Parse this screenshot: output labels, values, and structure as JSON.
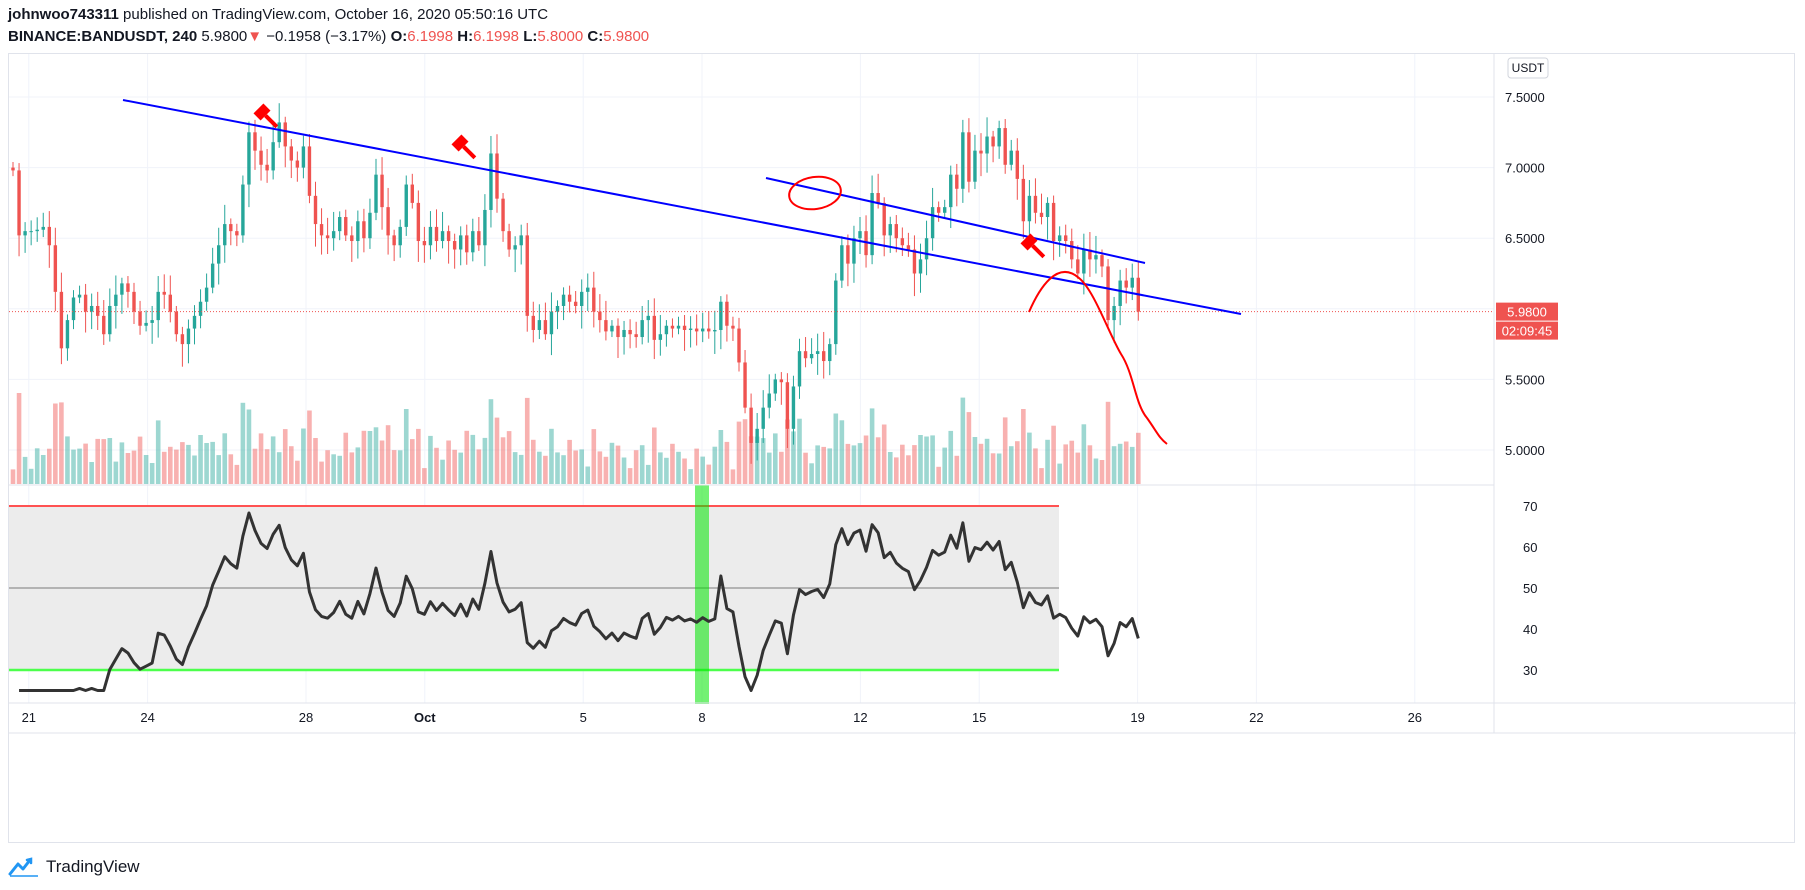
{
  "header": {
    "user": "johnwoo743311",
    "published": "published on TradingView.com, October 16, 2020 05:50:16 UTC",
    "symbol": "BINANCE:BANDUSDT, 240",
    "last": "5.9800",
    "arrow": "▼",
    "change": "−0.1958 (−3.17%)",
    "o_label": "O:",
    "o": "6.1998",
    "h_label": "H:",
    "h": "6.1998",
    "l_label": "L:",
    "l": "5.8000",
    "c_label": "C:",
    "c": "5.9800"
  },
  "footer": {
    "brand": "TradingView",
    "logo_icon": "tradingview-logo-icon"
  },
  "colors": {
    "up": "#26a69a",
    "down": "#ef5350",
    "trendline": "#0000ff",
    "annotation": "#ff0000",
    "rsi_line": "#333333",
    "rsi_upper": "#ff5252",
    "rsi_lower": "#4cff4c",
    "rsi_mid": "#a0a0a0",
    "rsi_band": "#ececec",
    "rsi_highlight": "#00e600"
  },
  "chart_data": {
    "type": "candlestick",
    "price_axis": {
      "currency": "USDT",
      "ticks": [
        "7.5000",
        "7.0000",
        "6.5000",
        "6.0000",
        "5.5000",
        "5.0000"
      ],
      "range": [
        4.75,
        7.8
      ],
      "last_price_label": "5.9800",
      "countdown_label": "02:09:45"
    },
    "rsi_axis": {
      "ticks": [
        "70",
        "60",
        "50",
        "40",
        "30"
      ],
      "range": [
        23,
        76
      ],
      "upper": 70,
      "middle": 50,
      "lower": 30
    },
    "x_axis": {
      "labels": [
        "21",
        "24",
        "28",
        "Oct",
        "5",
        "8",
        "12",
        "15",
        "19",
        "22",
        "26"
      ],
      "label_dates": [
        "2020-09-21",
        "2020-09-24",
        "2020-09-28",
        "2020-10-01",
        "2020-10-05",
        "2020-10-08",
        "2020-10-12",
        "2020-10-15",
        "2020-10-19",
        "2020-10-22",
        "2020-10-26"
      ],
      "start": "2020-09-20T12:00Z",
      "end": "2020-10-28T00:00Z"
    },
    "close": [
      6.98,
      6.52,
      6.55,
      6.55,
      6.56,
      6.58,
      6.45,
      6.12,
      5.72,
      5.92,
      6.08,
      6.1,
      5.98,
      6.02,
      5.95,
      5.82,
      6.02,
      6.1,
      6.18,
      6.12,
      5.98,
      5.88,
      5.9,
      5.92,
      6.12,
      6.1,
      5.98,
      5.82,
      5.75,
      5.86,
      5.95,
      6.05,
      6.15,
      6.32,
      6.45,
      6.6,
      6.55,
      6.52,
      6.88,
      7.25,
      7.12,
      7.02,
      6.98,
      7.18,
      7.32,
      7.15,
      7.05,
      7.0,
      7.15,
      6.8,
      6.6,
      6.52,
      6.5,
      6.55,
      6.65,
      6.52,
      6.48,
      6.62,
      6.5,
      6.68,
      6.95,
      6.72,
      6.52,
      6.45,
      6.58,
      6.88,
      6.75,
      6.48,
      6.45,
      6.58,
      6.48,
      6.55,
      6.48,
      6.42,
      6.52,
      6.4,
      6.55,
      6.45,
      6.7,
      7.1,
      6.78,
      6.55,
      6.42,
      6.45,
      6.52,
      5.95,
      5.85,
      5.92,
      5.82,
      5.98,
      6.02,
      6.1,
      6.05,
      6.02,
      6.12,
      6.15,
      5.98,
      5.92,
      5.84,
      5.88,
      5.8,
      5.85,
      5.82,
      5.8,
      5.92,
      5.95,
      5.78,
      5.82,
      5.88,
      5.86,
      5.88,
      5.85,
      5.86,
      5.84,
      5.86,
      5.84,
      5.85,
      6.05,
      5.88,
      5.86,
      5.62,
      5.3,
      5.05,
      5.15,
      5.3,
      5.4,
      5.5,
      5.48,
      5.15,
      5.45,
      5.7,
      5.65,
      5.68,
      5.7,
      5.63,
      5.75,
      6.2,
      6.45,
      6.32,
      6.5,
      6.55,
      6.38,
      6.82,
      6.75,
      6.52,
      6.6,
      6.5,
      6.45,
      6.42,
      6.25,
      6.35,
      6.5,
      6.72,
      6.68,
      6.72,
      6.95,
      6.85,
      7.25,
      6.9,
      7.12,
      7.1,
      7.22,
      7.15,
      7.28,
      7.02,
      7.12,
      6.92,
      6.62,
      6.8,
      6.68,
      6.65,
      6.75,
      6.48,
      6.52,
      6.48,
      6.35,
      6.25,
      6.42,
      6.35,
      6.38,
      6.3,
      5.92,
      6.02,
      6.2,
      6.15,
      6.22,
      5.98
    ]
  }
}
